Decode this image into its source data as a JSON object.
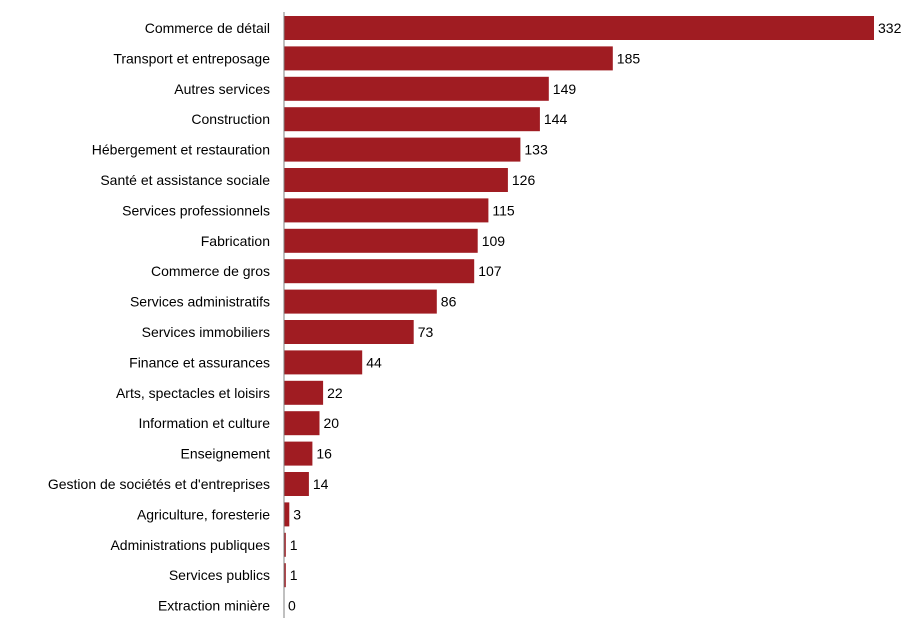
{
  "chart_data": {
    "type": "bar",
    "orientation": "horizontal",
    "title": "",
    "xlabel": "",
    "ylabel": "",
    "bar_color": "#A01C22",
    "grid": false,
    "legend": "none",
    "xlim": [
      0,
      332
    ],
    "categories": [
      "Commerce de détail",
      "Transport et entreposage",
      "Autres services",
      "Construction",
      "Hébergement et restauration",
      "Santé et assistance sociale",
      "Services professionnels",
      "Fabrication",
      "Commerce de gros",
      "Services administratifs",
      "Services immobiliers",
      "Finance et assurances",
      "Arts, spectacles et loisirs",
      "Information et culture",
      "Enseignement",
      "Gestion de sociétés et d'entreprises",
      "Agriculture, foresterie",
      "Administrations publiques",
      "Services publics",
      "Extraction minière"
    ],
    "values": [
      332,
      185,
      149,
      144,
      133,
      126,
      115,
      109,
      107,
      86,
      73,
      44,
      22,
      20,
      16,
      14,
      3,
      1,
      1,
      0
    ]
  }
}
